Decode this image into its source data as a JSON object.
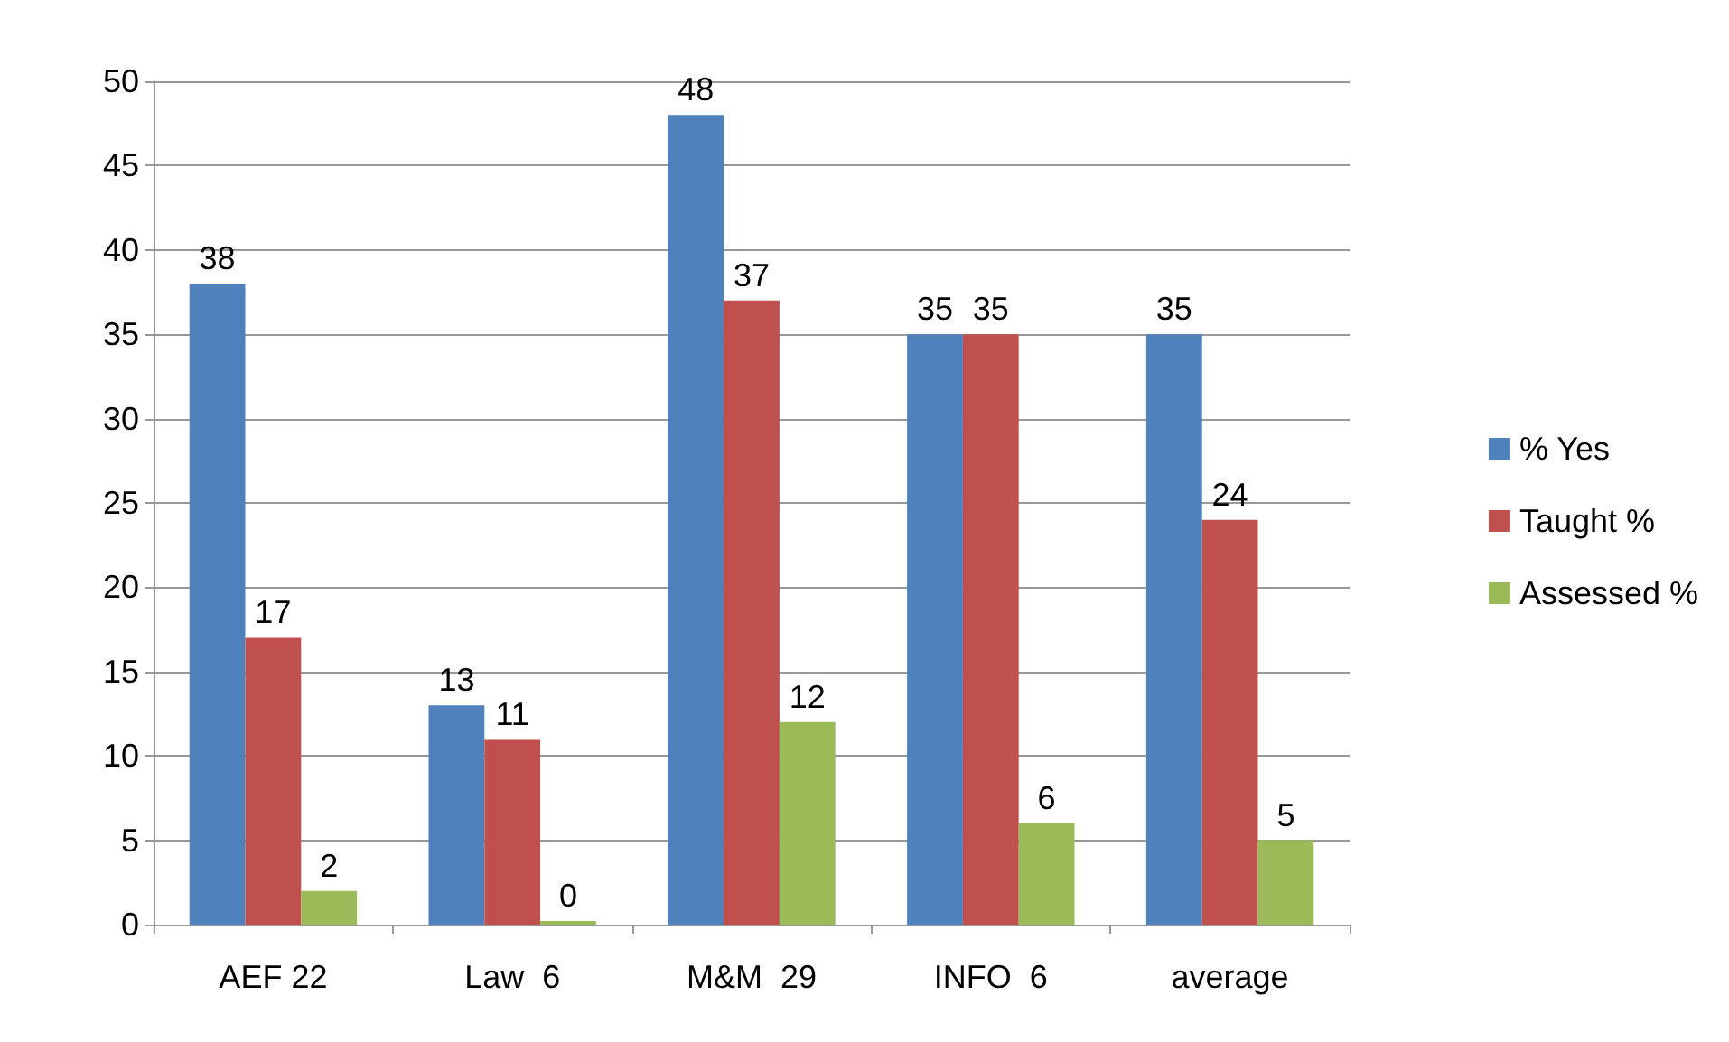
{
  "chart_data": {
    "type": "bar",
    "categories": [
      "AEF 22",
      "Law  6",
      "M&M  29",
      "INFO  6",
      "average"
    ],
    "series": [
      {
        "name": "% Yes",
        "color": "#4f81bd",
        "values": [
          38,
          13,
          48,
          35,
          35
        ]
      },
      {
        "name": "Taught %",
        "color": "#c0504d",
        "values": [
          17,
          11,
          37,
          35,
          24
        ]
      },
      {
        "name": "Assessed %",
        "color": "#9bbb59",
        "values": [
          2,
          0,
          12,
          6,
          5
        ]
      }
    ],
    "ylim": [
      0,
      50
    ],
    "yticks": [
      0,
      5,
      10,
      15,
      20,
      25,
      30,
      35,
      40,
      45,
      50
    ],
    "grid": "y",
    "legend": "right",
    "data_labels": true
  }
}
